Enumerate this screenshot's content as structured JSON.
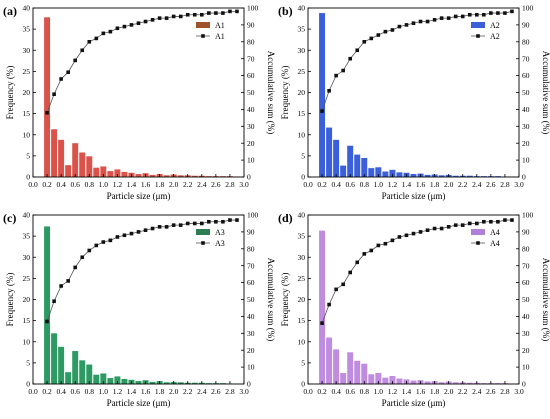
{
  "figure": {
    "panel_tags": [
      "(a)",
      "(b)",
      "(c)",
      "(d)"
    ]
  },
  "chart_data": [
    {
      "type": "bar",
      "panel": "(a)",
      "bar_color": "#d9534a",
      "legend_patch_color": "#a0522d",
      "x": [
        0.2,
        0.3,
        0.4,
        0.5,
        0.6,
        0.7,
        0.8,
        0.9,
        1.0,
        1.1,
        1.2,
        1.3,
        1.4,
        1.5,
        1.6,
        1.7,
        1.8,
        1.9,
        2.0,
        2.1,
        2.2,
        2.3,
        2.4,
        2.5,
        2.6,
        2.7,
        2.8,
        2.9
      ],
      "series": [
        {
          "name": "A1",
          "kind": "bar",
          "axis": "left",
          "values": [
            37.8,
            11.3,
            8.8,
            2.8,
            8.0,
            5.8,
            4.9,
            2.2,
            2.5,
            1.4,
            1.8,
            1.2,
            1.0,
            0.7,
            0.9,
            0.5,
            0.7,
            0.4,
            0.6,
            0.4,
            0.4,
            0.3,
            0.3,
            0.2,
            0.2,
            0.2,
            0.2,
            0.1
          ]
        },
        {
          "name": "A1",
          "kind": "line",
          "axis": "right",
          "values": [
            38,
            49,
            58,
            62,
            69,
            75,
            80,
            82,
            85,
            86,
            88,
            89,
            90,
            91,
            92,
            93,
            94,
            94,
            95,
            95,
            96,
            96,
            96,
            97,
            97,
            97,
            98,
            98
          ]
        }
      ],
      "xlabel": "Particle size (μm)",
      "ylabel": "Frequency (%)",
      "ylabel_right": "Accumulative sum (%)",
      "xlim": [
        0.0,
        3.0
      ],
      "ylim": [
        0,
        40
      ],
      "ylim_right": [
        0,
        100
      ],
      "xticks": [
        "0.0",
        "0.2",
        "0.4",
        "0.6",
        "0.8",
        "1.0",
        "1.2",
        "1.4",
        "1.6",
        "1.8",
        "2.0",
        "2.2",
        "2.4",
        "2.6",
        "2.8",
        "3.0"
      ],
      "yticks": [
        "0",
        "5",
        "10",
        "15",
        "20",
        "25",
        "30",
        "35",
        "40"
      ],
      "yticks_right": [
        "0",
        "10",
        "20",
        "30",
        "40",
        "50",
        "60",
        "70",
        "80",
        "90",
        "100"
      ],
      "legend": "top-right",
      "grid": false
    },
    {
      "type": "bar",
      "panel": "(b)",
      "bar_color": "#3a5fd9",
      "legend_patch_color": "#3a5fd9",
      "x": [
        0.2,
        0.3,
        0.4,
        0.5,
        0.6,
        0.7,
        0.8,
        0.9,
        1.0,
        1.1,
        1.2,
        1.3,
        1.4,
        1.5,
        1.6,
        1.7,
        1.8,
        1.9,
        2.0,
        2.1,
        2.2,
        2.3,
        2.4,
        2.5,
        2.6,
        2.7,
        2.8,
        2.9
      ],
      "series": [
        {
          "name": "A2",
          "kind": "bar",
          "axis": "left",
          "values": [
            38.8,
            11.7,
            8.8,
            2.7,
            7.4,
            5.3,
            4.5,
            2.1,
            2.3,
            1.3,
            1.7,
            1.1,
            1.0,
            0.7,
            0.8,
            0.5,
            0.6,
            0.4,
            0.5,
            0.3,
            0.3,
            0.3,
            0.2,
            0.2,
            0.2,
            0.2,
            0.1,
            0.1
          ]
        },
        {
          "name": "A2",
          "kind": "line",
          "axis": "right",
          "values": [
            39,
            51,
            60,
            63,
            70,
            75,
            80,
            82,
            84,
            86,
            87,
            89,
            90,
            91,
            92,
            92,
            93,
            94,
            94,
            95,
            95,
            96,
            96,
            96,
            97,
            97,
            97,
            98
          ]
        }
      ],
      "xlabel": "Particle size (μm)",
      "ylabel": "Frequency (%)",
      "ylabel_right": "Accumulative sum (%)",
      "xlim": [
        0.0,
        3.0
      ],
      "ylim": [
        0,
        40
      ],
      "ylim_right": [
        0,
        100
      ],
      "xticks": [
        "0.0",
        "0.2",
        "0.4",
        "0.6",
        "0.8",
        "1.0",
        "1.2",
        "1.4",
        "1.6",
        "1.8",
        "2.0",
        "2.2",
        "2.4",
        "2.6",
        "2.8",
        "3.0"
      ],
      "yticks": [
        "0",
        "5",
        "10",
        "15",
        "20",
        "25",
        "30",
        "35",
        "40"
      ],
      "yticks_right": [
        "0",
        "10",
        "20",
        "30",
        "40",
        "50",
        "60",
        "70",
        "80",
        "90",
        "100"
      ],
      "legend": "top-right",
      "grid": false
    },
    {
      "type": "bar",
      "panel": "(c)",
      "bar_color": "#2e9a63",
      "legend_patch_color": "#2e7d52",
      "x": [
        0.2,
        0.3,
        0.4,
        0.5,
        0.6,
        0.7,
        0.8,
        0.9,
        1.0,
        1.1,
        1.2,
        1.3,
        1.4,
        1.5,
        1.6,
        1.7,
        1.8,
        1.9,
        2.0,
        2.1,
        2.2,
        2.3,
        2.4,
        2.5,
        2.6,
        2.7,
        2.8,
        2.9
      ],
      "series": [
        {
          "name": "A3",
          "kind": "bar",
          "axis": "left",
          "values": [
            37.3,
            12.0,
            8.8,
            2.8,
            7.8,
            5.6,
            4.6,
            2.2,
            2.5,
            1.4,
            1.8,
            1.2,
            1.0,
            0.7,
            0.9,
            0.5,
            0.7,
            0.4,
            0.5,
            0.4,
            0.3,
            0.3,
            0.3,
            0.2,
            0.2,
            0.2,
            0.1,
            0.1
          ]
        },
        {
          "name": "A3",
          "kind": "line",
          "axis": "right",
          "values": [
            37,
            49,
            58,
            61,
            69,
            75,
            79,
            82,
            84,
            85,
            87,
            88,
            89,
            90,
            91,
            92,
            93,
            93,
            94,
            94,
            95,
            95,
            95,
            96,
            96,
            96,
            97,
            97
          ]
        }
      ],
      "xlabel": "Particle size (μm)",
      "ylabel": "Frequency (%)",
      "ylabel_right": "Accumulative sum (%)",
      "xlim": [
        0.0,
        3.0
      ],
      "ylim": [
        0,
        40
      ],
      "ylim_right": [
        0,
        100
      ],
      "xticks": [
        "0.0",
        "0.2",
        "0.4",
        "0.6",
        "0.8",
        "1.0",
        "1.2",
        "1.4",
        "1.6",
        "1.8",
        "2.0",
        "2.2",
        "2.4",
        "2.6",
        "2.8",
        "3.0"
      ],
      "yticks": [
        "0",
        "5",
        "10",
        "15",
        "20",
        "25",
        "30",
        "35",
        "40"
      ],
      "yticks_right": [
        "0",
        "10",
        "20",
        "30",
        "40",
        "50",
        "60",
        "70",
        "80",
        "90",
        "100"
      ],
      "legend": "top-right",
      "grid": false
    },
    {
      "type": "bar",
      "panel": "(d)",
      "bar_color": "#c08ce0",
      "legend_patch_color": "#b07fd9",
      "x": [
        0.2,
        0.3,
        0.4,
        0.5,
        0.6,
        0.7,
        0.8,
        0.9,
        1.0,
        1.1,
        1.2,
        1.3,
        1.4,
        1.5,
        1.6,
        1.7,
        1.8,
        1.9,
        2.0,
        2.1,
        2.2,
        2.3,
        2.4,
        2.5,
        2.6,
        2.7,
        2.8,
        2.9
      ],
      "series": [
        {
          "name": "A4",
          "kind": "bar",
          "axis": "left",
          "values": [
            36.3,
            11.0,
            8.2,
            2.6,
            7.5,
            5.5,
            4.8,
            2.3,
            2.6,
            1.5,
            1.9,
            1.3,
            1.1,
            0.8,
            0.9,
            0.6,
            0.7,
            0.4,
            0.6,
            0.4,
            0.4,
            0.3,
            0.3,
            0.2,
            0.2,
            0.2,
            0.2,
            0.1
          ]
        },
        {
          "name": "A4",
          "kind": "line",
          "axis": "right",
          "values": [
            36,
            47,
            56,
            59,
            66,
            72,
            77,
            79,
            82,
            83,
            85,
            87,
            88,
            89,
            90,
            91,
            92,
            92,
            93,
            94,
            94,
            95,
            95,
            96,
            96,
            96,
            97,
            97
          ]
        }
      ],
      "xlabel": "Particle size (μm)",
      "ylabel": "Frequency (%)",
      "ylabel_right": "Accumulative sum (%)",
      "xlim": [
        0.0,
        3.0
      ],
      "ylim": [
        0,
        40
      ],
      "ylim_right": [
        0,
        100
      ],
      "xticks": [
        "0.0",
        "0.2",
        "0.4",
        "0.6",
        "0.8",
        "1.0",
        "1.2",
        "1.4",
        "1.6",
        "1.8",
        "2.0",
        "2.2",
        "2.4",
        "2.6",
        "2.8",
        "3.0"
      ],
      "yticks": [
        "0",
        "5",
        "10",
        "15",
        "20",
        "25",
        "30",
        "35",
        "40"
      ],
      "yticks_right": [
        "0",
        "10",
        "20",
        "30",
        "40",
        "50",
        "60",
        "70",
        "80",
        "90",
        "100"
      ],
      "legend": "top-right",
      "grid": false
    }
  ]
}
